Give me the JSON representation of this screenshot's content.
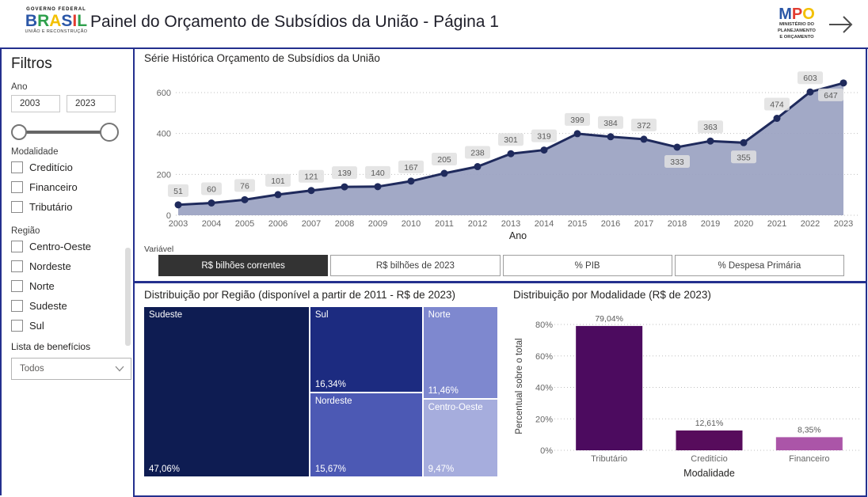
{
  "colors": {
    "panel_border": "#24308e",
    "line": "#1f2a5c",
    "area_fill": "#9aa2c1",
    "label_bg": "#e0e0e0",
    "selected_button_bg": "#333333"
  },
  "header": {
    "gov_logo": {
      "top": "GOVERNO FEDERAL",
      "brand_letters": [
        {
          "ch": "B",
          "color": "#2b57a7"
        },
        {
          "ch": "R",
          "color": "#2fa04c"
        },
        {
          "ch": "A",
          "color": "#f3c000"
        },
        {
          "ch": "S",
          "color": "#2b57a7"
        },
        {
          "ch": "I",
          "color": "#e23b30"
        },
        {
          "ch": "L",
          "color": "#2fa04c"
        }
      ],
      "bottom": "UNIÃO E RECONSTRUÇÃO"
    },
    "title": "Painel do Orçamento de Subsídios da União - Página 1",
    "mpo_logo": {
      "brand_letters": [
        {
          "ch": "M",
          "color": "#2b57a7"
        },
        {
          "ch": "P",
          "color": "#e23b30"
        },
        {
          "ch": "O",
          "color": "#f3c000"
        }
      ],
      "lines": [
        "MINISTÉRIO DO",
        "PLANEJAMENTO",
        "E ORÇAMENTO"
      ]
    }
  },
  "sidebar": {
    "title": "Filtros",
    "year_filter": {
      "label": "Ano",
      "from": "2003",
      "to": "2023"
    },
    "modalidade": {
      "label": "Modalidade",
      "options": [
        "Creditício",
        "Financeiro",
        "Tributário"
      ]
    },
    "regiao": {
      "label": "Região",
      "options": [
        "Centro-Oeste",
        "Nordeste",
        "Norte",
        "Sudeste",
        "Sul"
      ]
    },
    "beneficios": {
      "label": "Lista de benefícios",
      "selected": "Todos"
    }
  },
  "variable_selector": {
    "label": "Variável",
    "options": [
      "R$ bilhões correntes",
      "R$ bilhões de 2023",
      "% PIB",
      "% Despesa Primária"
    ],
    "selected": "R$ bilhões correntes"
  },
  "chart_data": [
    {
      "type": "area",
      "title": "Série Histórica Orçamento de Subsídios da União",
      "x": [
        2003,
        2004,
        2005,
        2006,
        2007,
        2008,
        2009,
        2010,
        2011,
        2012,
        2013,
        2014,
        2015,
        2016,
        2017,
        2018,
        2019,
        2020,
        2021,
        2022,
        2023
      ],
      "values": [
        51,
        60,
        76,
        101,
        121,
        139,
        140,
        167,
        205,
        238,
        301,
        319,
        399,
        384,
        372,
        333,
        363,
        355,
        474,
        603,
        647
      ],
      "label_positions": {
        "2018": "below",
        "2020": "below",
        "2023": "below-left"
      },
      "xlabel": "Ano",
      "ylabel": "",
      "yticks": [
        0,
        200,
        400,
        600
      ],
      "ylim": [
        0,
        650
      ],
      "grid": "dotted horizontal"
    },
    {
      "type": "treemap",
      "title": "Distribuição por Região (disponível a partir de 2011 - R$ de 2023)",
      "items": [
        {
          "name": "Sudeste",
          "value": 47.06,
          "value_label": "47,06%",
          "color": "#0e1c52"
        },
        {
          "name": "Sul",
          "value": 16.34,
          "value_label": "16,34%",
          "color": "#1c2b80"
        },
        {
          "name": "Nordeste",
          "value": 15.67,
          "value_label": "15,67%",
          "color": "#4c59b4"
        },
        {
          "name": "Norte",
          "value": 11.46,
          "value_label": "11,46%",
          "color": "#7e88cf"
        },
        {
          "name": "Centro-Oeste",
          "value": 9.47,
          "value_label": "9,47%",
          "color": "#a6addd"
        }
      ]
    },
    {
      "type": "bar",
      "title": "Distribuição por Modalidade (R$ de 2023)",
      "categories": [
        "Tributário",
        "Creditício",
        "Financeiro"
      ],
      "values": [
        79.04,
        12.61,
        8.35
      ],
      "value_labels": [
        "79,04%",
        "12,61%",
        "8,35%"
      ],
      "colors": [
        "#4c0b5f",
        "#570c5c",
        "#ab55a8"
      ],
      "xlabel": "Modalidade",
      "ylabel": "Percentual sobre o total",
      "yticks": [
        "0%",
        "20%",
        "40%",
        "60%",
        "80%"
      ],
      "ylim": [
        0,
        88
      ],
      "grid": "dotted horizontal"
    }
  ]
}
